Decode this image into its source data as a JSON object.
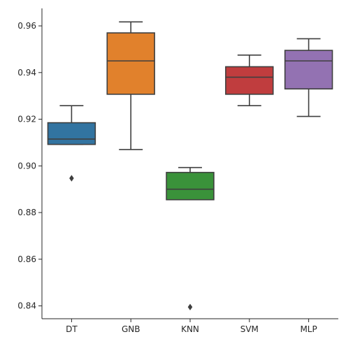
{
  "chart_data": {
    "type": "box",
    "title": "",
    "xlabel": "",
    "ylabel": "",
    "categories": [
      "DT",
      "GNB",
      "KNN",
      "SVM",
      "MLP"
    ],
    "ylim": [
      0.8345,
      0.9675
    ],
    "yticks": [
      0.84,
      0.86,
      0.88,
      0.9,
      0.92,
      0.94,
      0.96
    ],
    "ytick_labels": [
      "0.84",
      "0.86",
      "0.88",
      "0.90",
      "0.92",
      "0.94",
      "0.96"
    ],
    "grid": false,
    "legend": "none",
    "boxes": [
      {
        "category": "DT",
        "color": "#3274a1",
        "whisker_low": 0.9092,
        "q1": 0.9092,
        "median": 0.9115,
        "q3": 0.9185,
        "whisker_high": 0.9258,
        "outliers": [
          0.8947
        ]
      },
      {
        "category": "GNB",
        "color": "#e1812c",
        "whisker_low": 0.907,
        "q1": 0.9307,
        "median": 0.945,
        "q3": 0.957,
        "whisker_high": 0.9617,
        "outliers": []
      },
      {
        "category": "KNN",
        "color": "#3a923a",
        "whisker_low": 0.8855,
        "q1": 0.8855,
        "median": 0.89,
        "q3": 0.8972,
        "whisker_high": 0.8993,
        "outliers": [
          0.8395
        ]
      },
      {
        "category": "SVM",
        "color": "#c03d3e",
        "whisker_low": 0.9258,
        "q1": 0.9307,
        "median": 0.938,
        "q3": 0.9425,
        "whisker_high": 0.9475,
        "outliers": []
      },
      {
        "category": "MLP",
        "color": "#9372b2",
        "whisker_low": 0.9212,
        "q1": 0.933,
        "median": 0.945,
        "q3": 0.9495,
        "whisker_high": 0.9545,
        "outliers": []
      }
    ]
  }
}
